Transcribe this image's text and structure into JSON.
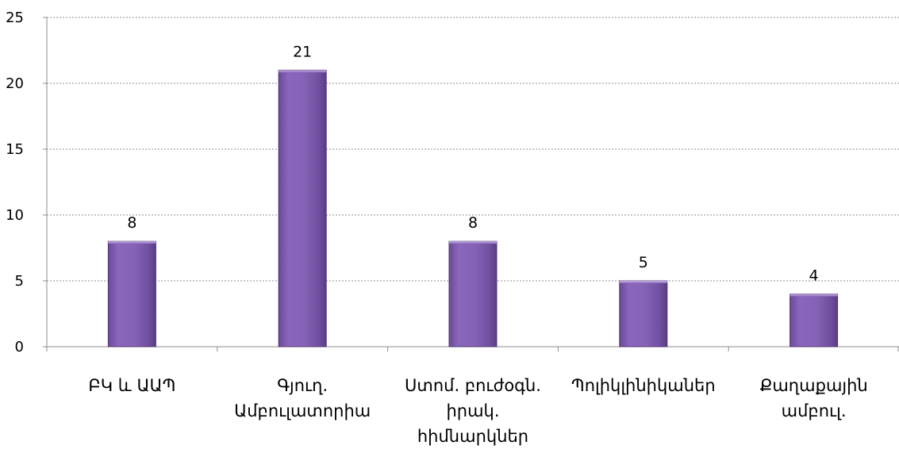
{
  "chart_data": {
    "type": "bar",
    "categories": [
      [
        "ԲԿ և ԱԱՊ"
      ],
      [
        "Գյուղ.",
        "Ամբուլատորիա"
      ],
      [
        "Ստոմ. բուժօգն.",
        "իրակ.",
        "հիմնարկներ"
      ],
      [
        "Պոլիկլինիկաներ"
      ],
      [
        "Քաղաքային",
        "ամբուլ."
      ]
    ],
    "values": [
      8,
      21,
      8,
      5,
      4
    ],
    "ylim": [
      0,
      25
    ],
    "yticks": [
      0,
      5,
      10,
      15,
      20,
      25
    ],
    "grid": true,
    "bar_color": "#7e5aad",
    "legend": false
  }
}
